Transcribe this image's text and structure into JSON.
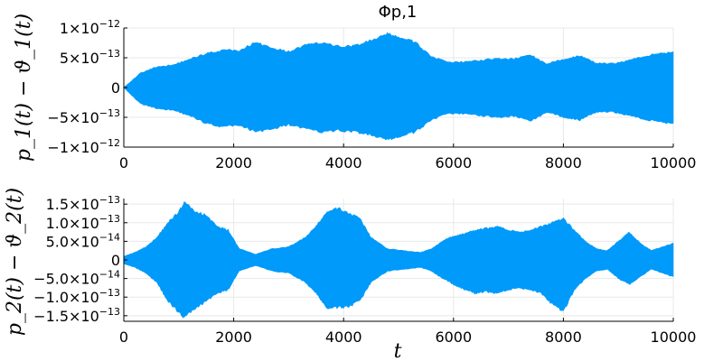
{
  "chart_data": [
    {
      "type": "area",
      "title": "Φp,1",
      "ylabel": "p_1(t) − ϑ_1(t)",
      "xlabel": "",
      "xlim": [
        0,
        10000
      ],
      "ylim": [
        -1e-12,
        1e-12
      ],
      "grid": true,
      "x_ticks": [
        {
          "value": 0,
          "label": "0"
        },
        {
          "value": 2000,
          "label": "2000"
        },
        {
          "value": 4000,
          "label": "4000"
        },
        {
          "value": 6000,
          "label": "6000"
        },
        {
          "value": 8000,
          "label": "8000"
        },
        {
          "value": 10000,
          "label": "10000"
        }
      ],
      "y_ticks": [
        {
          "value": 1e-12,
          "base": "1×10",
          "exp": "−12"
        },
        {
          "value": 5e-13,
          "base": "5×10",
          "exp": "−13"
        },
        {
          "value": 0,
          "base": "0",
          "exp": ""
        },
        {
          "value": -5e-13,
          "base": "−5×10",
          "exp": "−13"
        },
        {
          "value": -1e-12,
          "base": "−1×10",
          "exp": "−12"
        }
      ],
      "color": "#009AFA",
      "series": [
        {
          "x": [
            0,
            300,
            600,
            900,
            1200,
            1500,
            1800,
            2100,
            2400,
            2700,
            3000,
            3300,
            3600,
            3900,
            4200,
            4500,
            4800,
            5000,
            5300,
            5600,
            5900,
            6200,
            6500,
            6800,
            7100,
            7400,
            7700,
            8000,
            8300,
            8600,
            8900,
            9200,
            9500,
            9800,
            10000
          ],
          "upper": [
            0,
            2.4e-13,
            3.5e-13,
            3.8e-13,
            4.8e-13,
            5.7e-13,
            6.3e-13,
            6.2e-13,
            7.6e-13,
            6.6e-13,
            6e-13,
            7.1e-13,
            7.5e-13,
            6.9e-13,
            7e-13,
            7.9e-13,
            9e-13,
            8.5e-13,
            7.6e-13,
            5.2e-13,
            4.2e-13,
            4.3e-13,
            4.6e-13,
            4.9e-13,
            4.8e-13,
            5.5e-13,
            3.9e-13,
            4.8e-13,
            5.3e-13,
            4.1e-13,
            4e-13,
            4.6e-13,
            5.3e-13,
            5.8e-13,
            6e-13
          ],
          "lower": [
            0,
            -2.7e-13,
            -3.5e-13,
            -3.8e-13,
            -4.7e-13,
            -6e-13,
            -6.6e-13,
            -6.3e-13,
            -7.4e-13,
            -7e-13,
            -6.2e-13,
            -6.9e-13,
            -7.5e-13,
            -7.2e-13,
            -7.4e-13,
            -8e-13,
            -8.8e-13,
            -8.3e-13,
            -7.5e-13,
            -5.4e-13,
            -4.4e-13,
            -4.4e-13,
            -4.7e-13,
            -5e-13,
            -4.8e-13,
            -5.6e-13,
            -4.2e-13,
            -4.9e-13,
            -5.5e-13,
            -4.1e-13,
            -4.1e-13,
            -4.7e-13,
            -5.4e-13,
            -5.8e-13,
            -6e-13
          ]
        }
      ]
    },
    {
      "type": "area",
      "title": "",
      "ylabel": "p_2(t) − ϑ_2(t)",
      "xlabel": "t",
      "xlim": [
        0,
        10000
      ],
      "ylim": [
        -1.65e-13,
        1.65e-13
      ],
      "grid": true,
      "x_ticks": [
        {
          "value": 0,
          "label": "0"
        },
        {
          "value": 2000,
          "label": "2000"
        },
        {
          "value": 4000,
          "label": "4000"
        },
        {
          "value": 6000,
          "label": "6000"
        },
        {
          "value": 8000,
          "label": "8000"
        },
        {
          "value": 10000,
          "label": "10000"
        }
      ],
      "y_ticks": [
        {
          "value": 1.5e-13,
          "base": "1.5×10",
          "exp": "−13"
        },
        {
          "value": 1e-13,
          "base": "1.0×10",
          "exp": "−13"
        },
        {
          "value": 5e-14,
          "base": "5.0×10",
          "exp": "−14"
        },
        {
          "value": 0,
          "base": "0",
          "exp": ""
        },
        {
          "value": -5e-14,
          "base": "−5.0×10",
          "exp": "−14"
        },
        {
          "value": -1e-13,
          "base": "−1.0×10",
          "exp": "−13"
        },
        {
          "value": -1.5e-13,
          "base": "−1.5×10",
          "exp": "−13"
        }
      ],
      "color": "#009AFA",
      "series": [
        {
          "x": [
            0,
            200,
            400,
            600,
            800,
            1000,
            1100,
            1300,
            1500,
            1700,
            1900,
            2100,
            2400,
            2700,
            3000,
            3300,
            3500,
            3700,
            3900,
            4100,
            4300,
            4500,
            4800,
            5100,
            5400,
            5600,
            5800,
            6000,
            6200,
            6400,
            6600,
            6800,
            7000,
            7200,
            7400,
            7600,
            7800,
            8000,
            8200,
            8400,
            8600,
            8800,
            9000,
            9200,
            9400,
            9600,
            9800,
            10000
          ],
          "upper": [
            1e-14,
            2e-14,
            3.5e-14,
            6e-14,
            1e-13,
            1.3e-13,
            1.55e-13,
            1.3e-13,
            1.2e-13,
            9e-14,
            8e-14,
            3e-14,
            1.5e-14,
            3e-14,
            3.5e-14,
            6e-14,
            9e-14,
            1.3e-13,
            1.38e-13,
            1.25e-13,
            1.1e-13,
            6e-14,
            3e-14,
            2.5e-14,
            2e-14,
            3e-14,
            5e-14,
            6.5e-14,
            7e-14,
            8e-14,
            8.5e-14,
            9e-14,
            8e-14,
            7.5e-14,
            8e-14,
            9e-14,
            1e-13,
            1.1e-13,
            8e-14,
            5e-14,
            3e-14,
            2.5e-14,
            5e-14,
            7.5e-14,
            4.5e-14,
            2.5e-14,
            3.5e-14,
            4.5e-14
          ],
          "lower": [
            -1e-14,
            -2e-14,
            -3.5e-14,
            -6e-14,
            -1.1e-13,
            -1.4e-13,
            -1.55e-13,
            -1.3e-13,
            -1.1e-13,
            -9e-14,
            -8e-14,
            -3e-14,
            -1.5e-14,
            -3e-14,
            -3.5e-14,
            -6e-14,
            -9e-14,
            -1.3e-13,
            -1.28e-13,
            -1.25e-13,
            -1.1e-13,
            -6e-14,
            -3e-14,
            -2.5e-14,
            -2e-14,
            -3e-14,
            -5e-14,
            -6.5e-14,
            -8e-14,
            -9e-14,
            -8.5e-14,
            -9e-14,
            -8e-14,
            -7.5e-14,
            -8e-14,
            -9e-14,
            -1.2e-13,
            -1.4e-13,
            -8e-14,
            -5e-14,
            -3e-14,
            -2.5e-14,
            -5e-14,
            -6.5e-14,
            -4.5e-14,
            -2.5e-14,
            -3.5e-14,
            -4.5e-14
          ]
        }
      ]
    }
  ]
}
